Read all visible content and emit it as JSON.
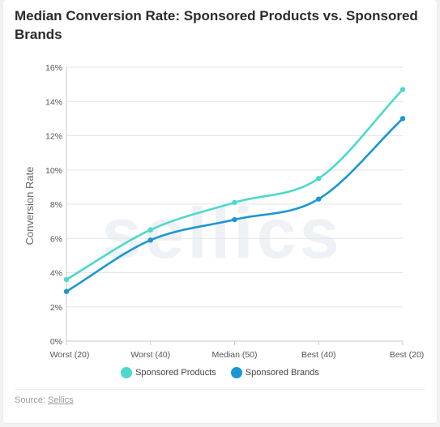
{
  "title": "Median Conversion Rate: Sponsored Products vs. Sponsored Brands",
  "watermark": "sellics",
  "source": {
    "label": "Source:",
    "link_text": "Sellics"
  },
  "colors": {
    "sponsored_products": "#4dd9c9",
    "sponsored_brands": "#1b97d3",
    "grid": "#e6e6e6",
    "axis": "#c9c9c9"
  },
  "chart_data": {
    "type": "line",
    "title": "Median Conversion Rate: Sponsored Products vs. Sponsored Brands",
    "xlabel": "",
    "ylabel": "Conversion Rate",
    "categories": [
      "Worst (20)",
      "Worst (40)",
      "Median (50)",
      "Best (40)",
      "Best (20)"
    ],
    "ylim": [
      0,
      16
    ],
    "yticks": [
      0,
      2,
      4,
      6,
      8,
      10,
      12,
      14,
      16
    ],
    "ytick_labels": [
      "0%",
      "2%",
      "4%",
      "6%",
      "8%",
      "10%",
      "12%",
      "14%",
      "16%"
    ],
    "grid": true,
    "legend": "bottom-center",
    "series": [
      {
        "name": "Sponsored Products",
        "values": [
          3.6,
          6.5,
          8.1,
          9.5,
          14.7
        ]
      },
      {
        "name": "Sponsored Brands",
        "values": [
          2.9,
          5.9,
          7.1,
          8.3,
          13.0
        ]
      }
    ]
  }
}
